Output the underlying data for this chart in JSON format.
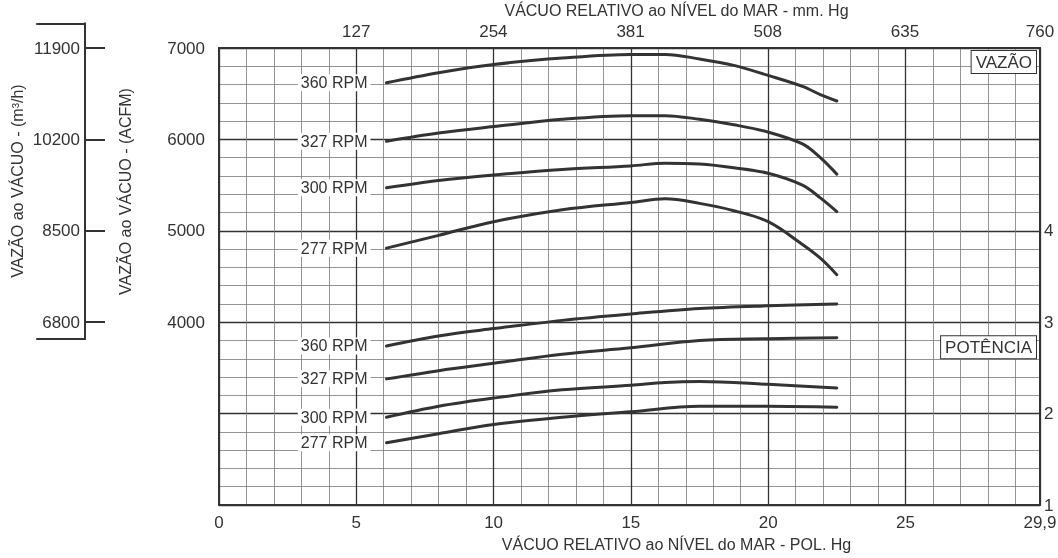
{
  "chart_data": {
    "type": "line",
    "xlabel": "VÁCUO RELATIVO ao NÍVEL do MAR - POL. Hg",
    "x2label": "VÁCUO RELATIVO ao NÍVEL do MAR - mm. Hg",
    "ylabel": "VAZÃO ao VÁCUO - (ACFM)",
    "y3label": "VAZÃO ao VÁCUO - (m³/h)",
    "xlim": [
      0,
      29.9
    ],
    "xticks": [
      0,
      5,
      10,
      15,
      20,
      25,
      {
        "value": 29.9,
        "label": "29,9"
      }
    ],
    "x2lim": [
      0,
      760
    ],
    "x2ticks": [
      127,
      254,
      381,
      508,
      635,
      760
    ],
    "ylim": [
      2000,
      7000
    ],
    "yticks": [
      4000,
      5000,
      6000,
      7000
    ],
    "y2lim": [
      1,
      6
    ],
    "y2ticks": [
      1,
      2,
      3,
      4
    ],
    "y3lim": [
      6490,
      12360
    ],
    "y3ticks": [
      6800,
      8500,
      10200,
      11900
    ],
    "grid": true,
    "line_style": "solid",
    "annotations": [
      "VAZÃO",
      "POTÊNCIA"
    ],
    "series": [
      {
        "name": "360 RPM",
        "color": "#333333",
        "x": [
          6.1,
          8,
          10,
          12.5,
          15,
          16.25,
          17.5,
          18.75,
          20,
          21.25,
          21.9,
          22.5
        ],
        "values": [
          6620,
          6730,
          6820,
          6890,
          6930,
          6930,
          6880,
          6810,
          6700,
          6580,
          6490,
          6420
        ]
      },
      {
        "name": "327 RPM",
        "color": "#333333",
        "x": [
          6.1,
          8,
          10,
          12.5,
          15,
          16.25,
          17.5,
          18.75,
          20,
          21.25,
          21.9,
          22.5
        ],
        "values": [
          5980,
          6070,
          6140,
          6220,
          6260,
          6260,
          6220,
          6160,
          6080,
          5950,
          5800,
          5620
        ]
      },
      {
        "name": "300 RPM",
        "color": "#333333",
        "x": [
          6.1,
          8,
          10,
          12.5,
          15,
          16.25,
          17.5,
          18.75,
          20,
          21.25,
          21.9,
          22.5
        ],
        "values": [
          5470,
          5550,
          5610,
          5670,
          5710,
          5740,
          5730,
          5690,
          5630,
          5500,
          5360,
          5210
        ]
      },
      {
        "name": "277 RPM",
        "color": "#333333",
        "x": [
          6.1,
          8,
          10,
          12.5,
          15,
          16.25,
          17.5,
          18.75,
          20,
          21.25,
          21.9,
          22.5
        ],
        "values": [
          4810,
          4950,
          5100,
          5230,
          5310,
          5350,
          5300,
          5220,
          5100,
          4850,
          4700,
          4520
        ]
      },
      {
        "name": "360 RPM",
        "color": "#333333",
        "axis": "y2",
        "x": [
          6.1,
          8,
          10,
          12.5,
          15,
          17.5,
          20,
          22.5
        ],
        "values": [
          2.74,
          2.85,
          2.93,
          3.02,
          3.09,
          3.15,
          3.18,
          3.2
        ]
      },
      {
        "name": "327 RPM",
        "color": "#333333",
        "axis": "y2",
        "x": [
          6.1,
          8,
          10,
          12.5,
          15,
          17.5,
          20,
          22.5
        ],
        "values": [
          2.38,
          2.47,
          2.55,
          2.65,
          2.72,
          2.8,
          2.82,
          2.83
        ]
      },
      {
        "name": "300 RPM",
        "color": "#333333",
        "axis": "y2",
        "x": [
          6.1,
          8,
          10,
          12.5,
          15,
          16.25,
          17.5,
          20,
          22.5
        ],
        "values": [
          1.96,
          2.08,
          2.17,
          2.26,
          2.31,
          2.34,
          2.35,
          2.32,
          2.28
        ]
      },
      {
        "name": "277 RPM",
        "color": "#333333",
        "axis": "y2",
        "x": [
          6.1,
          8,
          10,
          12.5,
          15,
          17.5,
          20,
          22.5
        ],
        "values": [
          1.68,
          1.78,
          1.88,
          1.96,
          2.02,
          2.08,
          2.08,
          2.07
        ]
      }
    ]
  }
}
